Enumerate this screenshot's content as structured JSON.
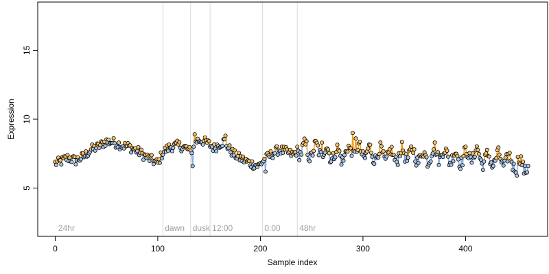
{
  "chart_data": {
    "type": "scatter",
    "title": "",
    "xlabel": "Sample index",
    "ylabel": "Expression",
    "xlim": [
      -17,
      480
    ],
    "ylim": [
      1.5,
      18.5
    ],
    "x_ticks": [
      0,
      100,
      200,
      300,
      400
    ],
    "y_ticks": [
      5,
      10,
      15
    ],
    "grid": false,
    "colors": {
      "point_fill_high": "#f5c36b",
      "point_fill_low": "#a9c3e6",
      "orange_line": "#f0a020",
      "blue_line": "#8fb0de",
      "vline": "#d9d9d9",
      "label_gray": "#a0a0a0",
      "point_stroke": "#000000"
    },
    "annotations": [
      {
        "text": "24hr",
        "x": 3
      },
      {
        "text": "dawn",
        "x": 107
      },
      {
        "text": "dusk",
        "x": 134
      },
      {
        "text": "12:00",
        "x": 153
      },
      {
        "text": "0:00",
        "x": 204
      },
      {
        "text": "48hr",
        "x": 238
      }
    ],
    "vlines": [
      105,
      132,
      151,
      202,
      236
    ],
    "annotation_y": 1.9,
    "anchors": [
      [
        0,
        6.8
      ],
      [
        5,
        6.9
      ],
      [
        12,
        7.2
      ],
      [
        20,
        7.0
      ],
      [
        28,
        7.3
      ],
      [
        35,
        7.8
      ],
      [
        42,
        8.0
      ],
      [
        50,
        8.4
      ],
      [
        58,
        8.3
      ],
      [
        65,
        8.1
      ],
      [
        72,
        8.0
      ],
      [
        80,
        7.7
      ],
      [
        88,
        7.3
      ],
      [
        95,
        7.0
      ],
      [
        100,
        6.8
      ],
      [
        105,
        7.6
      ],
      [
        112,
        8.0
      ],
      [
        120,
        8.1
      ],
      [
        128,
        7.9
      ],
      [
        132,
        7.6
      ],
      [
        136,
        8.4
      ],
      [
        142,
        8.5
      ],
      [
        150,
        8.2
      ],
      [
        155,
        7.9
      ],
      [
        160,
        8.2
      ],
      [
        165,
        8.4
      ],
      [
        170,
        7.8
      ],
      [
        175,
        7.4
      ],
      [
        182,
        7.1
      ],
      [
        190,
        6.8
      ],
      [
        198,
        6.6
      ],
      [
        203,
        7.0
      ],
      [
        210,
        7.4
      ],
      [
        218,
        7.8
      ],
      [
        226,
        7.6
      ],
      [
        232,
        7.4
      ],
      [
        238,
        7.9
      ],
      [
        248,
        7.6
      ],
      [
        258,
        7.8
      ],
      [
        268,
        7.5
      ],
      [
        280,
        7.4
      ],
      [
        290,
        7.7
      ],
      [
        300,
        7.6
      ],
      [
        310,
        7.5
      ],
      [
        320,
        7.4
      ],
      [
        330,
        7.3
      ],
      [
        340,
        7.5
      ],
      [
        350,
        7.4
      ],
      [
        360,
        7.2
      ],
      [
        370,
        7.6
      ],
      [
        380,
        7.4
      ],
      [
        390,
        7.2
      ],
      [
        400,
        7.3
      ],
      [
        410,
        7.5
      ],
      [
        420,
        7.0
      ],
      [
        430,
        7.1
      ],
      [
        440,
        7.0
      ],
      [
        450,
        6.8
      ],
      [
        460,
        6.6
      ]
    ],
    "highlights": [
      [
        290,
        9.0
      ],
      [
        293,
        8.6
      ],
      [
        136,
        8.9
      ],
      [
        166,
        8.8
      ],
      [
        134,
        6.6
      ],
      [
        205,
        6.2
      ],
      [
        450,
        5.9
      ],
      [
        260,
        8.3
      ],
      [
        245,
        8.4
      ]
    ]
  }
}
